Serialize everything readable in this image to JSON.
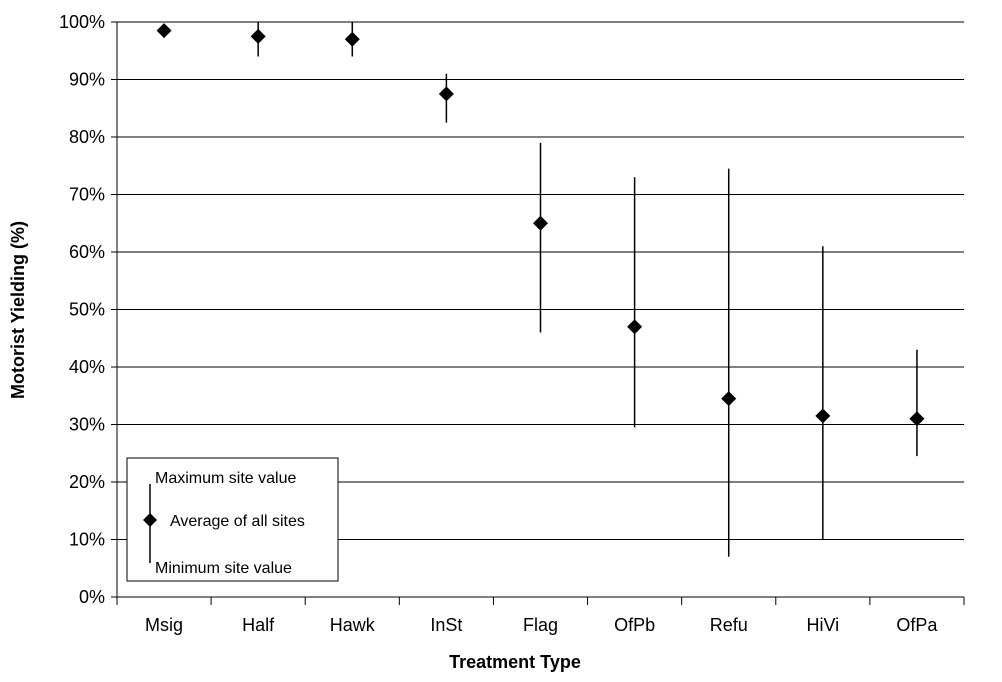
{
  "chart_data": {
    "type": "scatter",
    "title": "",
    "xlabel": "Treatment Type",
    "ylabel": "Motorist Yielding (%)",
    "ylim": [
      0,
      100
    ],
    "ytick_labels": [
      "0%",
      "10%",
      "20%",
      "30%",
      "40%",
      "50%",
      "60%",
      "70%",
      "80%",
      "90%",
      "100%"
    ],
    "grid": "horizontal",
    "categories": [
      "Msig",
      "Half",
      "Hawk",
      "InSt",
      "Flag",
      "OfPb",
      "Refu",
      "HiVi",
      "OfPa"
    ],
    "series": [
      {
        "mean": [
          98.5,
          97.5,
          97,
          87.5,
          65,
          47,
          34.5,
          31.5,
          31
        ],
        "min": [
          98.5,
          94,
          94,
          82.5,
          46,
          29.5,
          7,
          10,
          24.5
        ],
        "max": [
          98.5,
          100,
          100,
          91,
          79,
          73,
          74.5,
          61,
          43
        ]
      }
    ],
    "legend": {
      "position": "bottom-left",
      "max_label": "Maximum site value",
      "avg_label": "Average of all sites",
      "min_label": "Minimum site value"
    }
  }
}
